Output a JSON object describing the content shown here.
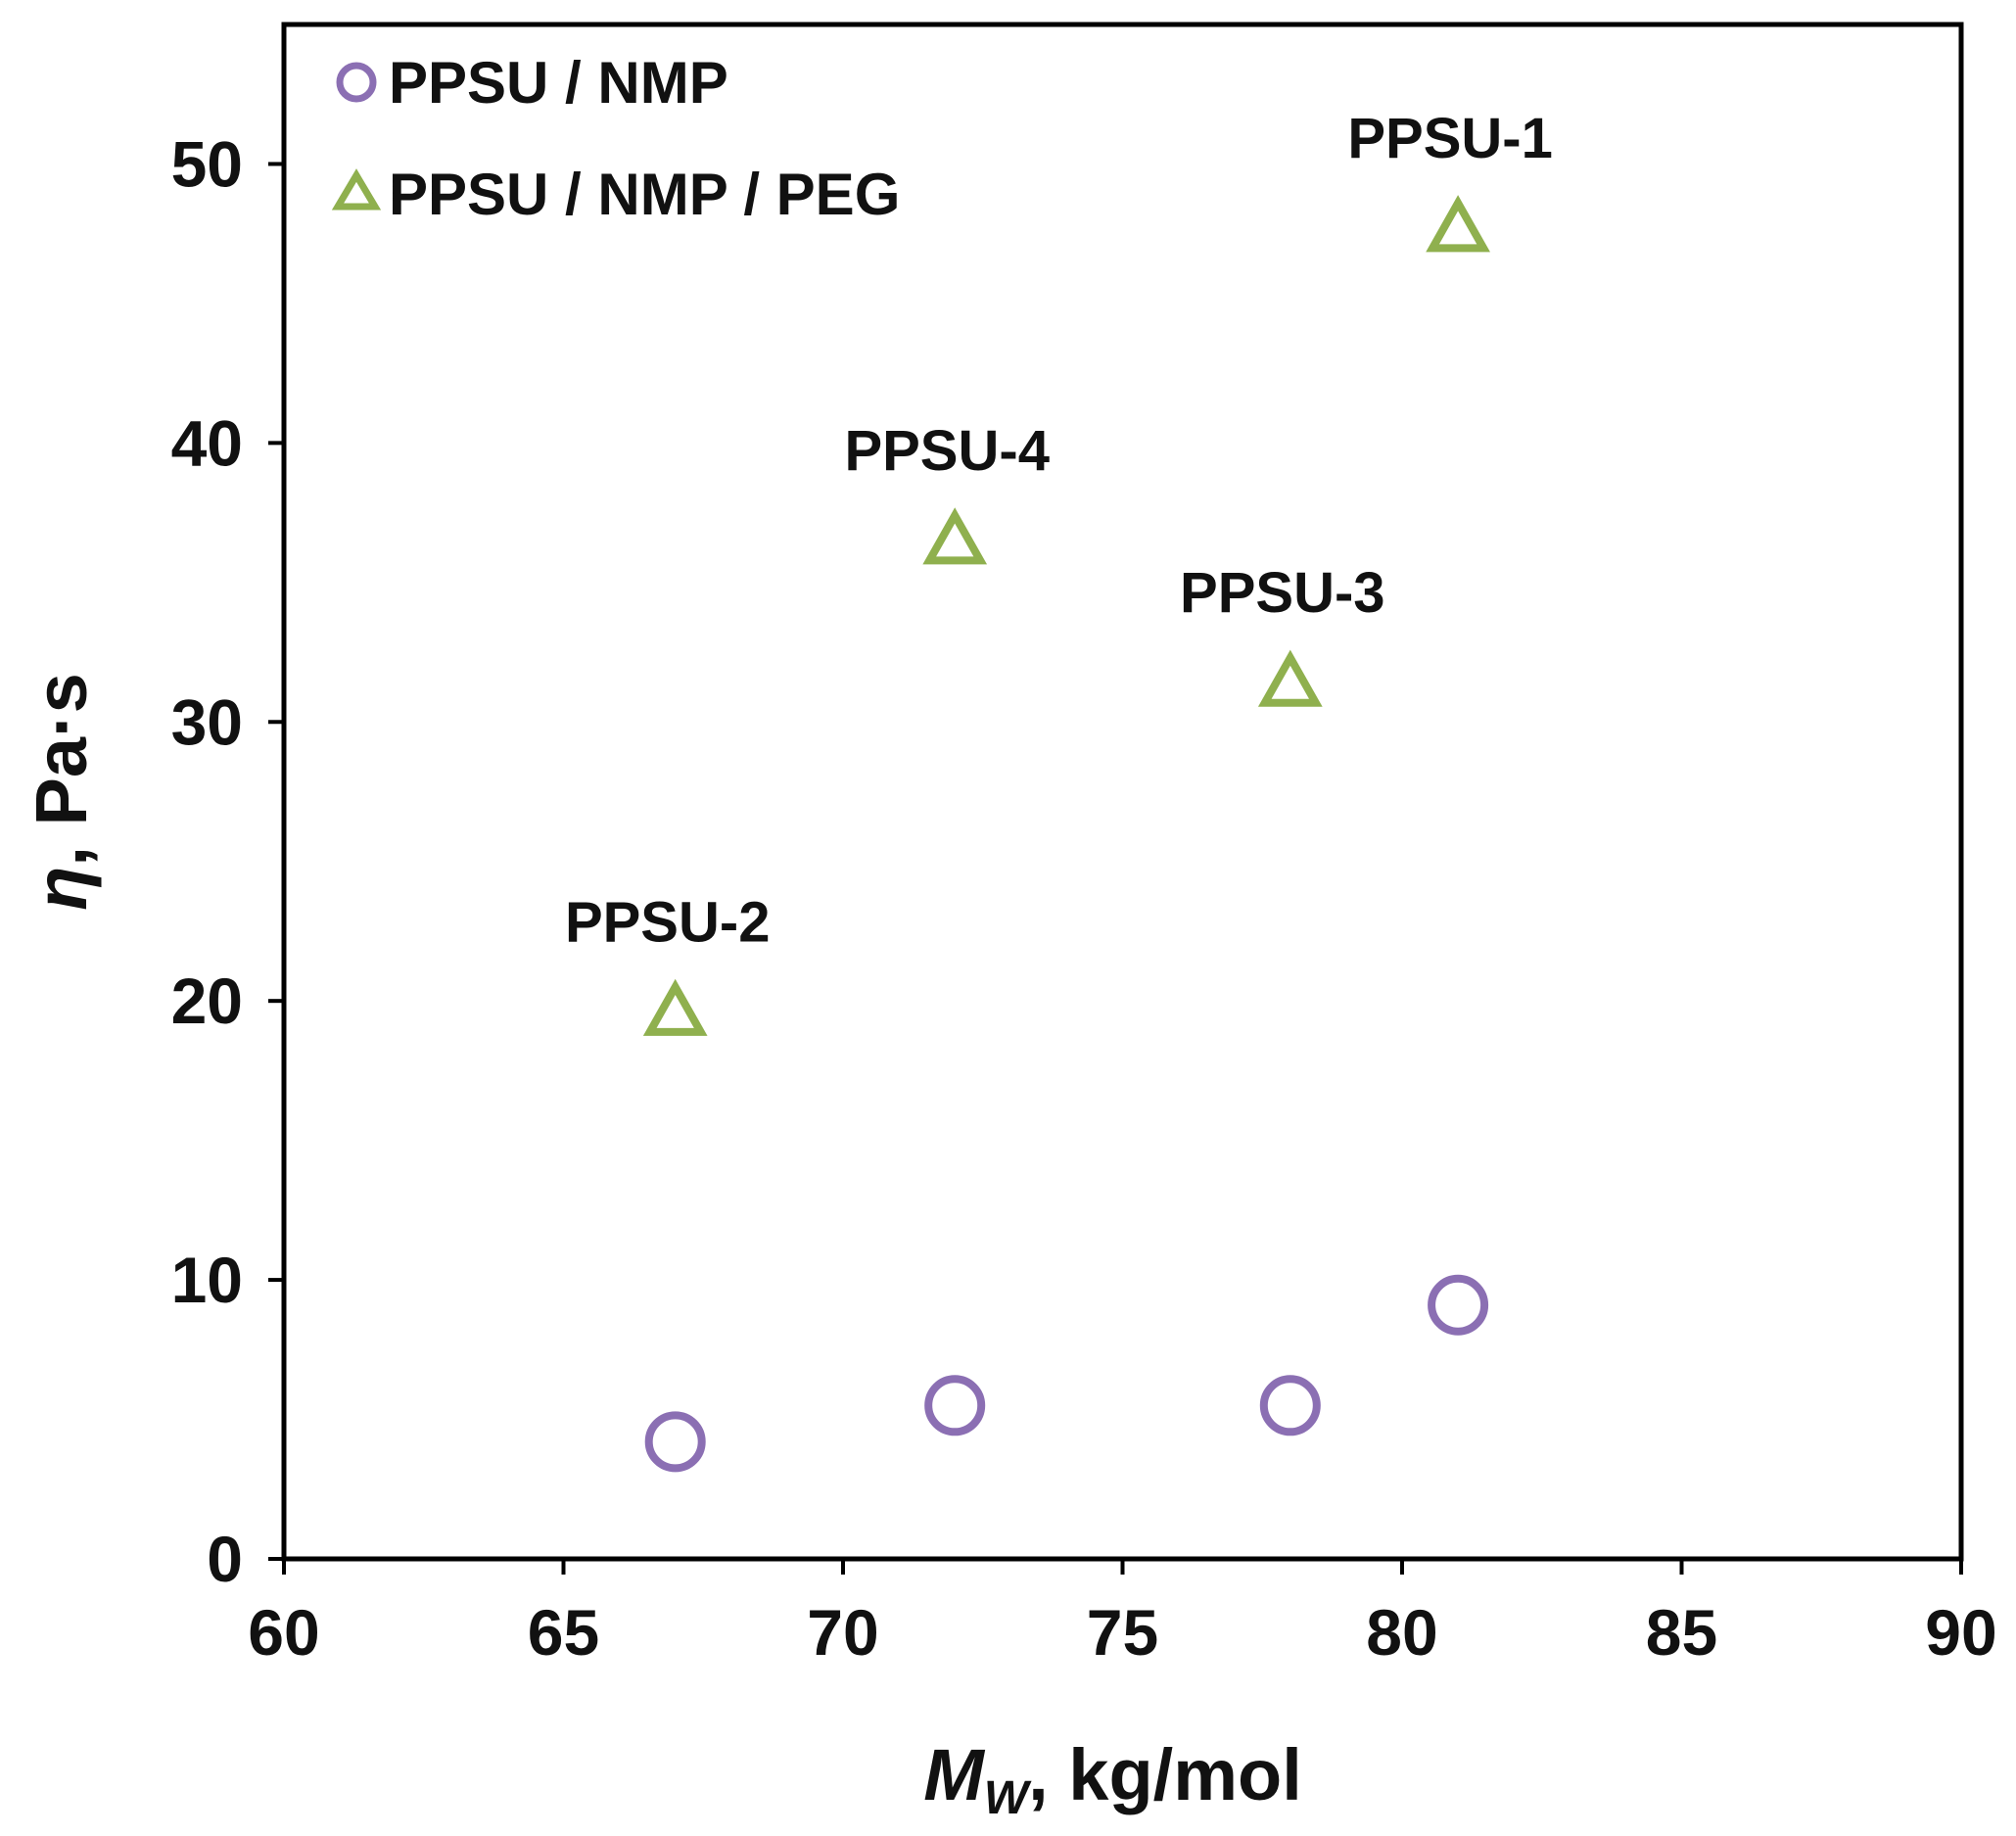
{
  "chart_data": {
    "type": "scatter",
    "xlabel": {
      "symbol": "M",
      "subscript": "W",
      "rest": ", kg/mol"
    },
    "ylabel": {
      "symbol": "η",
      "rest": ", Pa·s"
    },
    "xlim": [
      60,
      90
    ],
    "ylim": [
      0,
      50
    ],
    "ymax_display": 55,
    "xticks": [
      "60",
      "65",
      "70",
      "75",
      "80",
      "85",
      "90"
    ],
    "yticks": [
      "0",
      "10",
      "20",
      "30",
      "40",
      "50"
    ],
    "grid": false,
    "legend_position": "top-left",
    "series": [
      {
        "name": "PPSU / NMP",
        "marker": "circle",
        "color": "#8b6fb3",
        "points": [
          {
            "x": 67,
            "y": 4.2
          },
          {
            "x": 72,
            "y": 5.5
          },
          {
            "x": 78,
            "y": 5.5
          },
          {
            "x": 81,
            "y": 9.1
          }
        ]
      },
      {
        "name": "PPSU / NMP / PEG",
        "marker": "triangle",
        "color": "#8fb04e",
        "points": [
          {
            "x": 67,
            "y": 19.5,
            "label": "PPSU-2"
          },
          {
            "x": 72,
            "y": 36.4,
            "label": "PPSU-4"
          },
          {
            "x": 78,
            "y": 31.3,
            "label": "PPSU-3"
          },
          {
            "x": 81,
            "y": 47.6,
            "label": "PPSU-1"
          }
        ]
      }
    ]
  }
}
